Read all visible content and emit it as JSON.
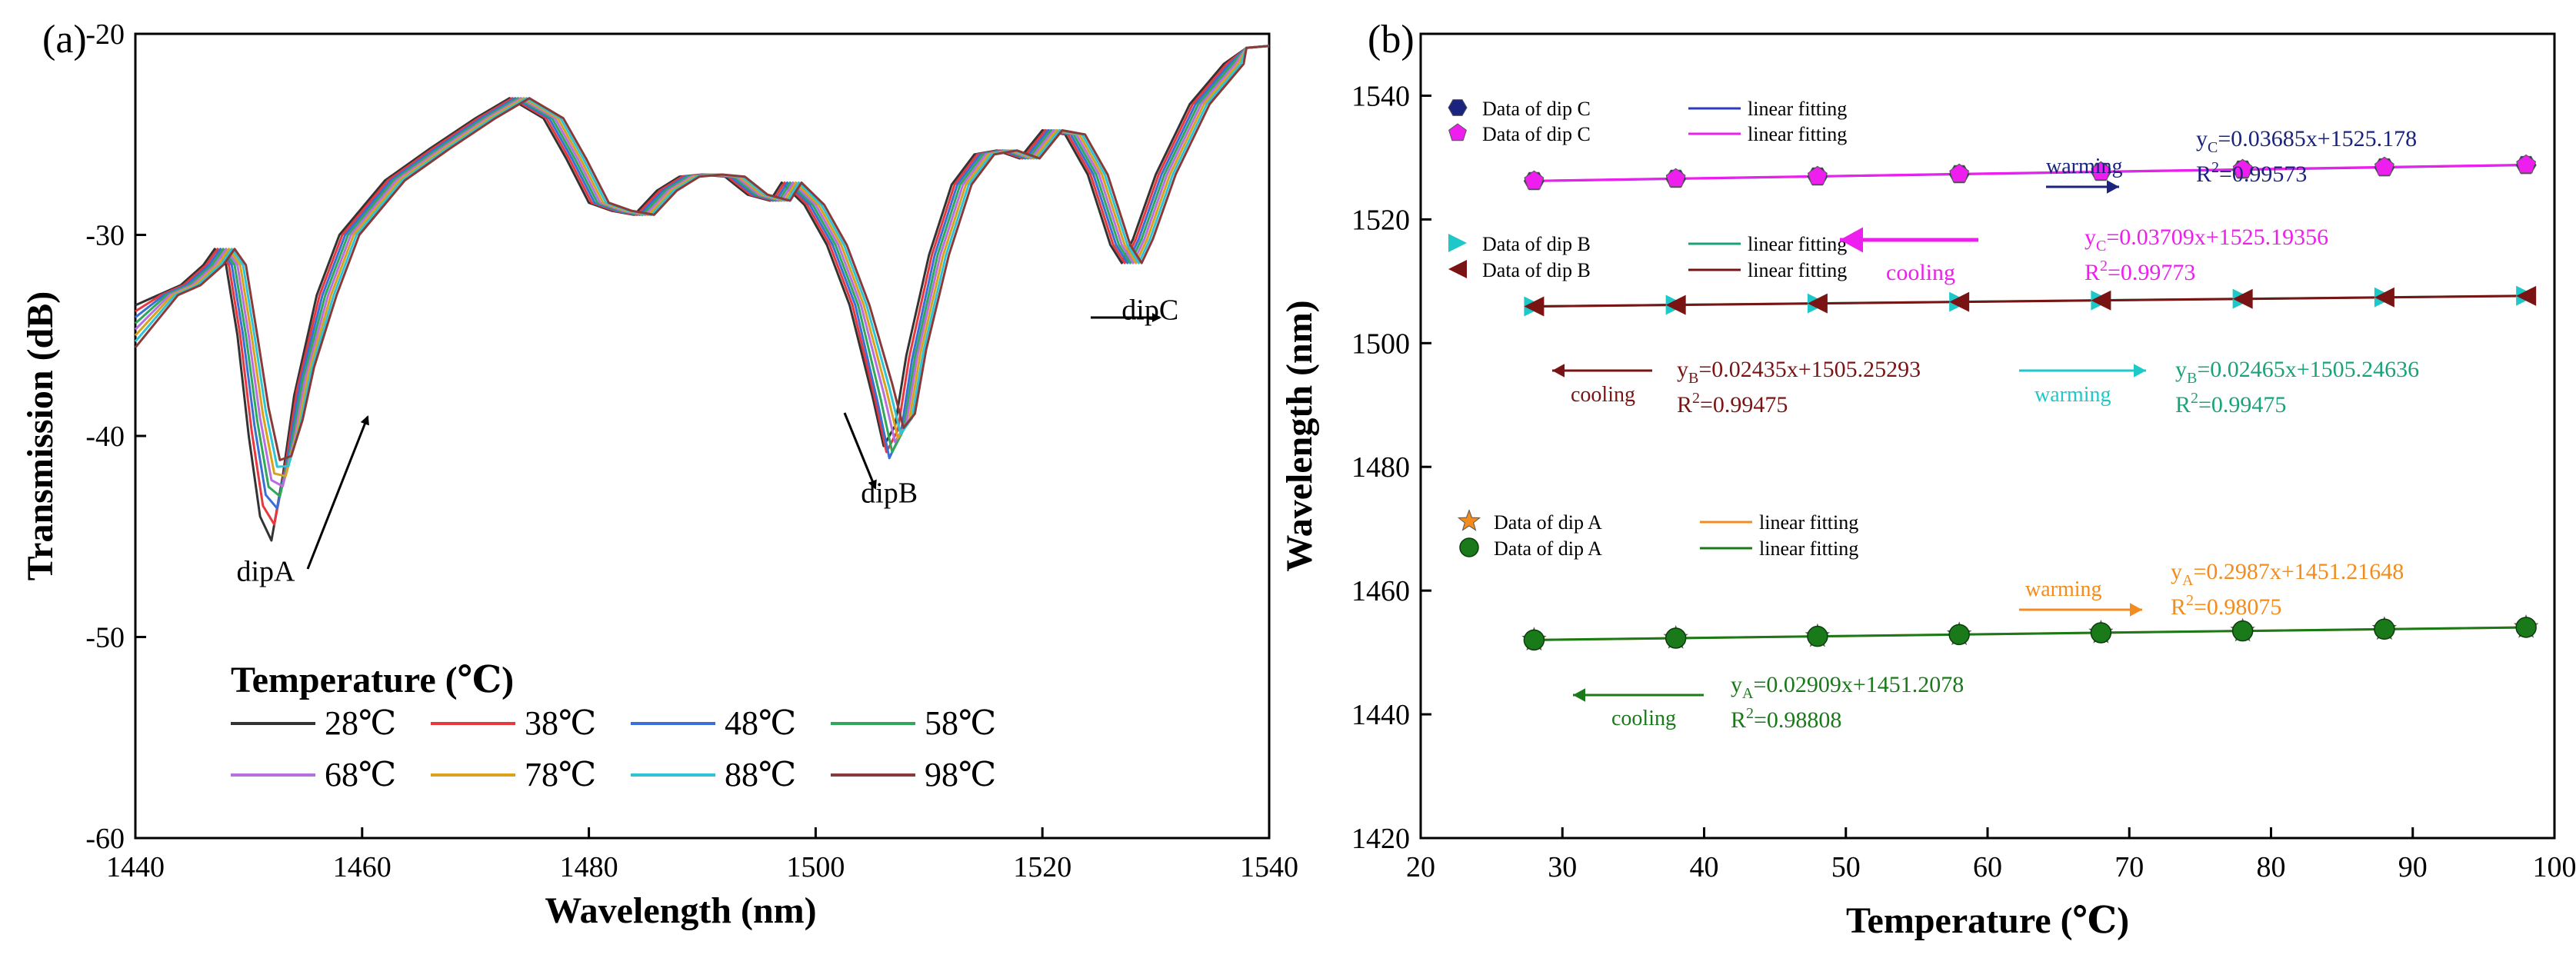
{
  "panels": {
    "a": {
      "label": "(a)",
      "chart_data": {
        "type": "line",
        "title": "",
        "xlabel": "Wavelength (nm)",
        "ylabel": "Transmission (dB)",
        "xlim": [
          1440,
          1540
        ],
        "ylim": [
          -60,
          -20
        ],
        "xticks": [
          1440,
          1460,
          1480,
          1500,
          1520,
          1540
        ],
        "yticks": [
          -60,
          -50,
          -40,
          -30,
          -20
        ],
        "xtick_labels": [
          "1440",
          "1460",
          "1480",
          "1500",
          "1520",
          "1540"
        ],
        "ytick_labels": [
          "-60",
          "-50",
          "-40",
          "-30",
          "-20"
        ],
        "legend_title": "Temperature  (℃)",
        "series": [
          {
            "name": "28℃",
            "color": "#333333",
            "shift": 0.0
          },
          {
            "name": "38℃",
            "color": "#e8383d",
            "shift": 0.25
          },
          {
            "name": "48℃",
            "color": "#3a6fd8",
            "shift": 0.5
          },
          {
            "name": "58℃",
            "color": "#2fa85a",
            "shift": 0.75
          },
          {
            "name": "68℃",
            "color": "#b86fe0",
            "shift": 1.0
          },
          {
            "name": "78℃",
            "color": "#d9a21b",
            "shift": 1.25
          },
          {
            "name": "88℃",
            "color": "#2ec4d6",
            "shift": 1.5
          },
          {
            "name": "98℃",
            "color": "#8b3a3a",
            "shift": 1.75
          }
        ],
        "base_curve": [
          [
            1440,
            -33.5
          ],
          [
            1442,
            -33.0
          ],
          [
            1444,
            -32.5
          ],
          [
            1446,
            -31.5
          ],
          [
            1447,
            -30.7
          ],
          [
            1448,
            -31.5
          ],
          [
            1449,
            -35
          ],
          [
            1450,
            -40
          ],
          [
            1451,
            -44
          ],
          [
            1452,
            -45.2
          ],
          [
            1453,
            -42
          ],
          [
            1454,
            -38
          ],
          [
            1456,
            -33
          ],
          [
            1458,
            -30.0
          ],
          [
            1462,
            -27.3
          ],
          [
            1466,
            -25.7
          ],
          [
            1470,
            -24.2
          ],
          [
            1473,
            -23.2
          ],
          [
            1476,
            -24.2
          ],
          [
            1478,
            -26.2
          ],
          [
            1480,
            -28.4
          ],
          [
            1482,
            -28.8
          ],
          [
            1484,
            -29.0
          ],
          [
            1486,
            -27.8
          ],
          [
            1488,
            -27.1
          ],
          [
            1490,
            -27.0
          ],
          [
            1492,
            -27.1
          ],
          [
            1494,
            -28.0
          ],
          [
            1496,
            -28.3
          ],
          [
            1497,
            -27.4
          ],
          [
            1499,
            -28.5
          ],
          [
            1501,
            -30.5
          ],
          [
            1503,
            -33.5
          ],
          [
            1505,
            -38.0
          ],
          [
            1506,
            -40.5
          ],
          [
            1507,
            -39.5
          ],
          [
            1508,
            -36
          ],
          [
            1510,
            -31
          ],
          [
            1512,
            -27.5
          ],
          [
            1514,
            -26.0
          ],
          [
            1516,
            -25.8
          ],
          [
            1518,
            -26.2
          ],
          [
            1520,
            -24.8
          ],
          [
            1522,
            -25.0
          ],
          [
            1524,
            -27
          ],
          [
            1526,
            -30.5
          ],
          [
            1527,
            -31.4
          ],
          [
            1528,
            -30.2
          ],
          [
            1530,
            -27
          ],
          [
            1533,
            -23.5
          ],
          [
            1536,
            -21.5
          ],
          [
            1538,
            -20.7
          ],
          [
            1540,
            -20.6
          ]
        ],
        "annotations": [
          {
            "text": "dipA",
            "x": 1451.5,
            "y": -47.2
          },
          {
            "text": "dipB",
            "x": 1506.5,
            "y": -43.3
          },
          {
            "text": "dipC",
            "x": 1529.5,
            "y": -34.2
          }
        ]
      }
    },
    "b": {
      "label": "(b)",
      "chart_data": {
        "type": "scatter",
        "title": "",
        "xlabel": "Temperature  (℃)",
        "ylabel": "Wavelength (nm)",
        "xlim": [
          20,
          100
        ],
        "ylim": [
          1420,
          1550
        ],
        "xticks": [
          20,
          30,
          40,
          50,
          60,
          70,
          80,
          90,
          100
        ],
        "yticks": [
          1420,
          1440,
          1460,
          1480,
          1500,
          1520,
          1540
        ],
        "xtick_labels": [
          "20",
          "30",
          "40",
          "50",
          "60",
          "70",
          "80",
          "90",
          "100"
        ],
        "ytick_labels": [
          "1420",
          "1440",
          "1460",
          "1480",
          "1500",
          "1520",
          "1540"
        ],
        "x": [
          28,
          38,
          48,
          58,
          68,
          78,
          88,
          98
        ],
        "series": [
          {
            "name": "Data of dip C",
            "direction": "warming",
            "marker": "hexagon",
            "color": "#1a237e",
            "fit_color": "#2e3bbd",
            "slope": 0.03685,
            "intercept": 1525.178
          },
          {
            "name": "Data of dip C",
            "direction": "cooling",
            "marker": "pentagon",
            "color": "#ee1fee",
            "fit_color": "#ee1fee",
            "slope": 0.03709,
            "intercept": 1525.19356
          },
          {
            "name": "Data of dip B",
            "direction": "warming",
            "marker": "triangle-right",
            "color": "#1ec8c8",
            "fit_color": "#1aa37a",
            "slope": 0.02465,
            "intercept": 1505.24636
          },
          {
            "name": "Data of dip B",
            "direction": "cooling",
            "marker": "triangle-left",
            "color": "#7a1414",
            "fit_color": "#7a1414",
            "slope": 0.02435,
            "intercept": 1505.25293
          },
          {
            "name": "Data of  dip A",
            "direction": "warming",
            "marker": "star",
            "color": "#f28c1e",
            "fit_color": "#f28c1e",
            "slope": 0.2987,
            "intercept": 1451.21648
          },
          {
            "name": "Data of  dip A",
            "direction": "cooling",
            "marker": "circle",
            "color": "#1a7a1a",
            "fit_color": "#1a7a1a",
            "slope": 0.02909,
            "intercept": 1451.2078
          }
        ],
        "fit_label": "linear fitting",
        "equations": [
          {
            "sub": "C",
            "formula": "=0.03685x+1525.178",
            "r2": "=0.99573",
            "color": "#1a237e"
          },
          {
            "sub": "C",
            "formula": "=0.03709x+1525.19356",
            "r2": "=0.99773",
            "color": "#ee1fee"
          },
          {
            "sub": "B",
            "formula": "=0.02435x+1505.25293",
            "r2": "=0.99475",
            "color": "#7a1414"
          },
          {
            "sub": "B",
            "formula": "=0.02465x+1505.24636",
            "r2": "=0.99475",
            "color": "#1aa37a"
          },
          {
            "sub": "A",
            "formula": "=0.2987x+1451.21648",
            "r2": "=0.98075",
            "color": "#f28c1e"
          },
          {
            "sub": "A",
            "formula": "=0.02909x+1451.2078",
            "r2": "=0.98808",
            "color": "#1a7a1a"
          }
        ],
        "arrow_labels": {
          "warming": "warming",
          "cooling": "cooling"
        }
      }
    }
  }
}
